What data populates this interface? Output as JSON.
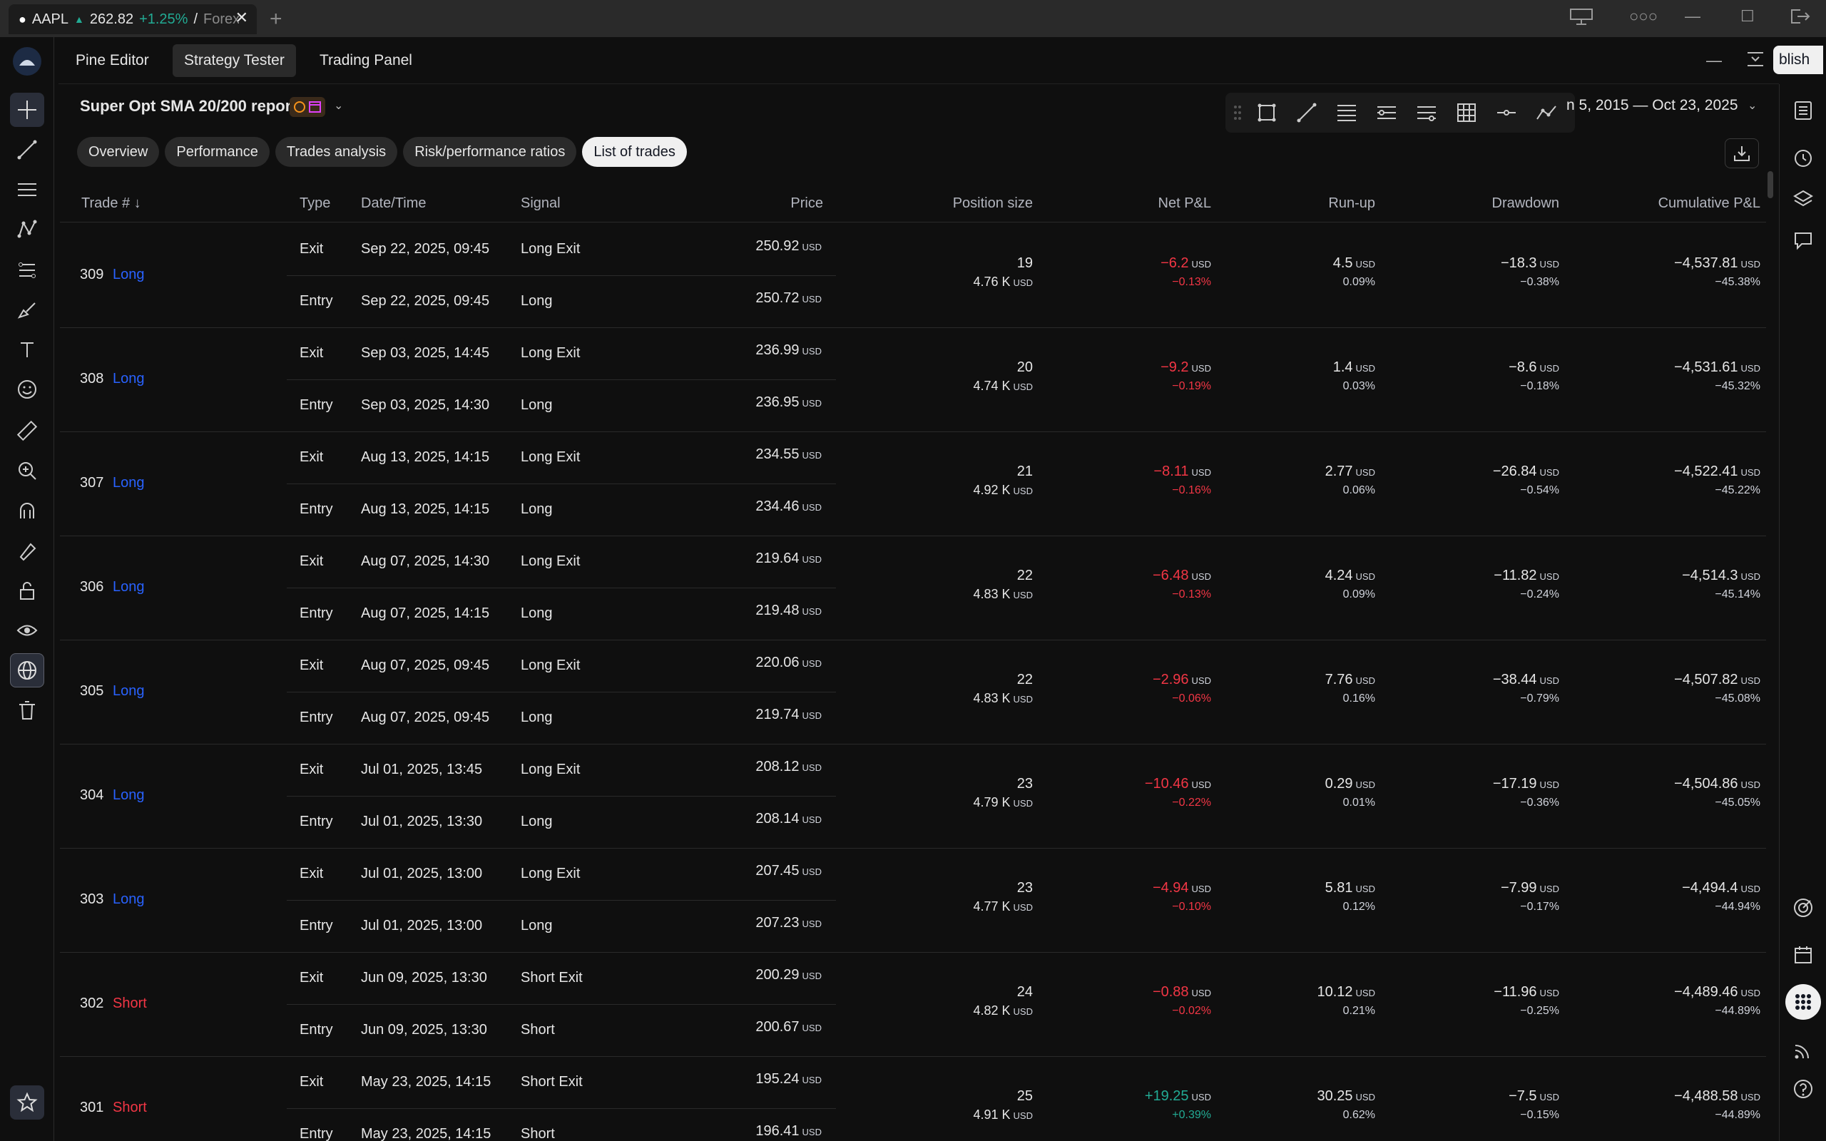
{
  "browser_tab": {
    "symbol": "AAPL",
    "price": "262.82",
    "change": "+1.25%",
    "separator": "/",
    "exchange": "Forex"
  },
  "panel_tabs": [
    "Pine Editor",
    "Strategy Tester",
    "Trading Panel"
  ],
  "publish_label": "blish",
  "report": {
    "title": "Super Opt SMA 20/200 report",
    "date_range": "n 5, 2015 — Oct 23, 2025"
  },
  "sub_tabs": [
    "Overview",
    "Performance",
    "Trades analysis",
    "Risk/performance ratios",
    "List of trades"
  ],
  "columns": {
    "trade": "Trade # ↓",
    "type": "Type",
    "datetime": "Date/Time",
    "signal": "Signal",
    "price": "Price",
    "position_size": "Position size",
    "net_pnl": "Net P&L",
    "run_up": "Run-up",
    "drawdown": "Drawdown",
    "cum_pnl": "Cumulative P&L"
  },
  "currency": "USD",
  "trades": [
    {
      "no": "309",
      "dir": "Long",
      "exit": {
        "type": "Exit",
        "datetime": "Sep 22, 2025, 09:45",
        "signal": "Long Exit",
        "price": "250.92"
      },
      "entry": {
        "type": "Entry",
        "datetime": "Sep 22, 2025, 09:45",
        "signal": "Long",
        "price": "250.72"
      },
      "size_qty": "19",
      "size_val": "4.76 K",
      "net": "−6.2",
      "net_pct": "−0.13%",
      "runup": "4.5",
      "runup_pct": "0.09%",
      "dd": "−18.3",
      "dd_pct": "−0.38%",
      "cum": "−4,537.81",
      "cum_pct": "−45.38%"
    },
    {
      "no": "308",
      "dir": "Long",
      "exit": {
        "type": "Exit",
        "datetime": "Sep 03, 2025, 14:45",
        "signal": "Long Exit",
        "price": "236.99"
      },
      "entry": {
        "type": "Entry",
        "datetime": "Sep 03, 2025, 14:30",
        "signal": "Long",
        "price": "236.95"
      },
      "size_qty": "20",
      "size_val": "4.74 K",
      "net": "−9.2",
      "net_pct": "−0.19%",
      "runup": "1.4",
      "runup_pct": "0.03%",
      "dd": "−8.6",
      "dd_pct": "−0.18%",
      "cum": "−4,531.61",
      "cum_pct": "−45.32%"
    },
    {
      "no": "307",
      "dir": "Long",
      "exit": {
        "type": "Exit",
        "datetime": "Aug 13, 2025, 14:15",
        "signal": "Long Exit",
        "price": "234.55"
      },
      "entry": {
        "type": "Entry",
        "datetime": "Aug 13, 2025, 14:15",
        "signal": "Long",
        "price": "234.46"
      },
      "size_qty": "21",
      "size_val": "4.92 K",
      "net": "−8.11",
      "net_pct": "−0.16%",
      "runup": "2.77",
      "runup_pct": "0.06%",
      "dd": "−26.84",
      "dd_pct": "−0.54%",
      "cum": "−4,522.41",
      "cum_pct": "−45.22%"
    },
    {
      "no": "306",
      "dir": "Long",
      "exit": {
        "type": "Exit",
        "datetime": "Aug 07, 2025, 14:30",
        "signal": "Long Exit",
        "price": "219.64"
      },
      "entry": {
        "type": "Entry",
        "datetime": "Aug 07, 2025, 14:15",
        "signal": "Long",
        "price": "219.48"
      },
      "size_qty": "22",
      "size_val": "4.83 K",
      "net": "−6.48",
      "net_pct": "−0.13%",
      "runup": "4.24",
      "runup_pct": "0.09%",
      "dd": "−11.82",
      "dd_pct": "−0.24%",
      "cum": "−4,514.3",
      "cum_pct": "−45.14%"
    },
    {
      "no": "305",
      "dir": "Long",
      "exit": {
        "type": "Exit",
        "datetime": "Aug 07, 2025, 09:45",
        "signal": "Long Exit",
        "price": "220.06"
      },
      "entry": {
        "type": "Entry",
        "datetime": "Aug 07, 2025, 09:45",
        "signal": "Long",
        "price": "219.74"
      },
      "size_qty": "22",
      "size_val": "4.83 K",
      "net": "−2.96",
      "net_pct": "−0.06%",
      "runup": "7.76",
      "runup_pct": "0.16%",
      "dd": "−38.44",
      "dd_pct": "−0.79%",
      "cum": "−4,507.82",
      "cum_pct": "−45.08%"
    },
    {
      "no": "304",
      "dir": "Long",
      "exit": {
        "type": "Exit",
        "datetime": "Jul 01, 2025, 13:45",
        "signal": "Long Exit",
        "price": "208.12"
      },
      "entry": {
        "type": "Entry",
        "datetime": "Jul 01, 2025, 13:30",
        "signal": "Long",
        "price": "208.14"
      },
      "size_qty": "23",
      "size_val": "4.79 K",
      "net": "−10.46",
      "net_pct": "−0.22%",
      "runup": "0.29",
      "runup_pct": "0.01%",
      "dd": "−17.19",
      "dd_pct": "−0.36%",
      "cum": "−4,504.86",
      "cum_pct": "−45.05%"
    },
    {
      "no": "303",
      "dir": "Long",
      "exit": {
        "type": "Exit",
        "datetime": "Jul 01, 2025, 13:00",
        "signal": "Long Exit",
        "price": "207.45"
      },
      "entry": {
        "type": "Entry",
        "datetime": "Jul 01, 2025, 13:00",
        "signal": "Long",
        "price": "207.23"
      },
      "size_qty": "23",
      "size_val": "4.77 K",
      "net": "−4.94",
      "net_pct": "−0.10%",
      "runup": "5.81",
      "runup_pct": "0.12%",
      "dd": "−7.99",
      "dd_pct": "−0.17%",
      "cum": "−4,494.4",
      "cum_pct": "−44.94%"
    },
    {
      "no": "302",
      "dir": "Short",
      "exit": {
        "type": "Exit",
        "datetime": "Jun 09, 2025, 13:30",
        "signal": "Short Exit",
        "price": "200.29"
      },
      "entry": {
        "type": "Entry",
        "datetime": "Jun 09, 2025, 13:30",
        "signal": "Short",
        "price": "200.67"
      },
      "size_qty": "24",
      "size_val": "4.82 K",
      "net": "−0.88",
      "net_pct": "−0.02%",
      "runup": "10.12",
      "runup_pct": "0.21%",
      "dd": "−11.96",
      "dd_pct": "−0.25%",
      "cum": "−4,489.46",
      "cum_pct": "−44.89%"
    },
    {
      "no": "301",
      "dir": "Short",
      "exit": {
        "type": "Exit",
        "datetime": "May 23, 2025, 14:15",
        "signal": "Short Exit",
        "price": "195.24"
      },
      "entry": {
        "type": "Entry",
        "datetime": "May 23, 2025, 14:15",
        "signal": "Short",
        "price": "196.41"
      },
      "size_qty": "25",
      "size_val": "4.91 K",
      "net": "+19.25",
      "net_pct": "+0.39%",
      "runup": "30.25",
      "runup_pct": "0.62%",
      "dd": "−7.5",
      "dd_pct": "−0.15%",
      "cum": "−4,488.58",
      "cum_pct": "−44.89%"
    }
  ],
  "colors": {
    "long": "#2962ff",
    "short": "#f23645",
    "negative": "#f23645",
    "positive": "#22ab94"
  }
}
